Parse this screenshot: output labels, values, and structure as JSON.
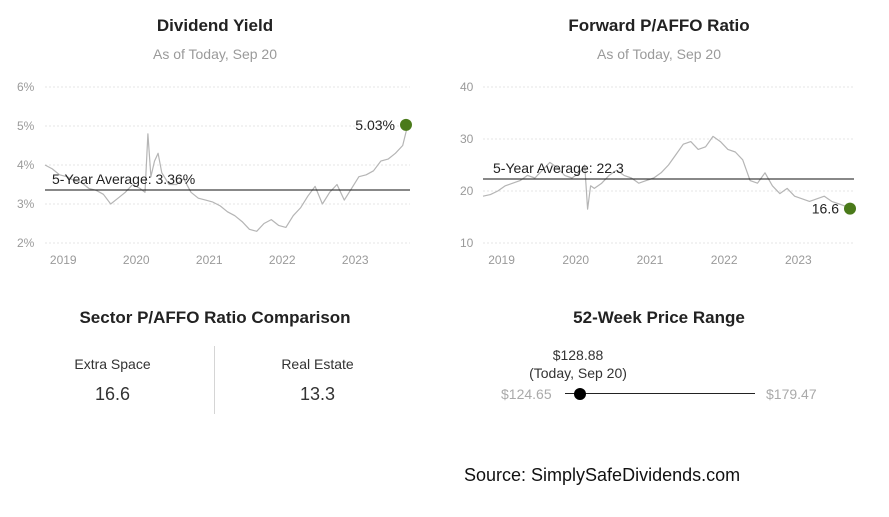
{
  "dividend": {
    "title": "Dividend Yield",
    "subtitle": "As of Today, Sep 20",
    "avg_label": "5-Year Average: 3.36%",
    "current_label": "5.03%"
  },
  "pafo": {
    "title": "Forward P/AFFO Ratio",
    "subtitle": "As of Today, Sep 20",
    "avg_label": "5-Year Average: 22.3",
    "current_label": "16.6"
  },
  "sector": {
    "title": "Sector P/AFFO Ratio Comparison",
    "items": [
      {
        "label": "Extra Space",
        "value": "16.6"
      },
      {
        "label": "Real Estate",
        "value": "13.3"
      }
    ]
  },
  "range52": {
    "title": "52-Week Price Range",
    "low": "$124.65",
    "high": "$179.47",
    "current": "$128.88",
    "current_note": "(Today, Sep 20)",
    "low_value": 124.65,
    "high_value": 179.47,
    "current_value": 128.88
  },
  "source": "Source: SimplySafeDividends.com",
  "colors": {
    "accent": "#4a7a1a",
    "line": "#b5b5b5",
    "avg": "#111111"
  },
  "chart_data": [
    {
      "type": "line",
      "title": "Dividend Yield",
      "subtitle": "As of Today, Sep 20",
      "ylim": [
        2,
        6
      ],
      "xlim": [
        2018.75,
        2023.75
      ],
      "y_ticks": [
        "2%",
        "3%",
        "4%",
        "5%",
        "6%"
      ],
      "y_tick_values": [
        2,
        3,
        4,
        5,
        6
      ],
      "x_ticks": [
        "2019",
        "2020",
        "2021",
        "2022",
        "2023"
      ],
      "x_tick_values": [
        2019,
        2020,
        2021,
        2022,
        2023
      ],
      "average": 3.36,
      "current": 5.03,
      "grid": true,
      "series": [
        {
          "x": [
            2018.75,
            2018.85,
            2018.95,
            2019.05,
            2019.15,
            2019.25,
            2019.35,
            2019.45,
            2019.55,
            2019.65,
            2019.75,
            2019.85,
            2019.95,
            2020.05,
            2020.12,
            2020.16,
            2020.2,
            2020.25,
            2020.3,
            2020.35,
            2020.45,
            2020.55,
            2020.65,
            2020.75,
            2020.85,
            2020.95,
            2021.05,
            2021.15,
            2021.25,
            2021.35,
            2021.45,
            2021.55,
            2021.65,
            2021.75,
            2021.85,
            2021.95,
            2022.05,
            2022.15,
            2022.25,
            2022.35,
            2022.45,
            2022.55,
            2022.65,
            2022.75,
            2022.85,
            2022.95,
            2023.05,
            2023.15,
            2023.25,
            2023.35,
            2023.45,
            2023.55,
            2023.65,
            2023.72
          ],
          "y": [
            4.0,
            3.9,
            3.75,
            3.7,
            3.6,
            3.55,
            3.4,
            3.35,
            3.25,
            3.0,
            3.15,
            3.3,
            3.5,
            3.4,
            3.3,
            4.8,
            3.7,
            4.1,
            4.3,
            3.8,
            3.5,
            3.5,
            3.65,
            3.3,
            3.15,
            3.1,
            3.05,
            2.95,
            2.8,
            2.7,
            2.55,
            2.35,
            2.3,
            2.5,
            2.6,
            2.45,
            2.4,
            2.7,
            2.9,
            3.2,
            3.45,
            3.0,
            3.3,
            3.5,
            3.1,
            3.4,
            3.7,
            3.75,
            3.85,
            4.1,
            4.15,
            4.3,
            4.5,
            5.03
          ]
        }
      ]
    },
    {
      "type": "line",
      "title": "Forward P/AFFO Ratio",
      "subtitle": "As of Today, Sep 20",
      "ylim": [
        10,
        40
      ],
      "xlim": [
        2018.75,
        2023.75
      ],
      "y_ticks": [
        "10",
        "20",
        "30",
        "40"
      ],
      "y_tick_values": [
        10,
        20,
        30,
        40
      ],
      "x_ticks": [
        "2019",
        "2020",
        "2021",
        "2022",
        "2023"
      ],
      "x_tick_values": [
        2019,
        2020,
        2021,
        2022,
        2023
      ],
      "average": 22.3,
      "current": 16.6,
      "grid": true,
      "series": [
        {
          "x": [
            2018.75,
            2018.85,
            2018.95,
            2019.05,
            2019.15,
            2019.25,
            2019.35,
            2019.45,
            2019.55,
            2019.65,
            2019.75,
            2019.85,
            2019.95,
            2020.05,
            2020.12,
            2020.16,
            2020.2,
            2020.25,
            2020.35,
            2020.45,
            2020.55,
            2020.65,
            2020.75,
            2020.85,
            2020.95,
            2021.05,
            2021.15,
            2021.25,
            2021.35,
            2021.45,
            2021.55,
            2021.65,
            2021.75,
            2021.85,
            2021.95,
            2022.05,
            2022.15,
            2022.25,
            2022.35,
            2022.45,
            2022.55,
            2022.65,
            2022.75,
            2022.85,
            2022.95,
            2023.05,
            2023.15,
            2023.25,
            2023.35,
            2023.45,
            2023.55,
            2023.65,
            2023.72
          ],
          "y": [
            19.0,
            19.3,
            20.0,
            21.0,
            21.5,
            22.0,
            23.0,
            22.5,
            24.0,
            25.5,
            24.5,
            23.0,
            22.5,
            23.5,
            25.0,
            16.5,
            21.0,
            20.5,
            21.5,
            23.0,
            24.0,
            23.0,
            22.5,
            21.5,
            22.0,
            22.5,
            23.5,
            25.0,
            27.0,
            29.0,
            29.5,
            28.0,
            28.5,
            30.5,
            29.5,
            28.0,
            27.5,
            26.0,
            22.0,
            21.5,
            23.5,
            21.0,
            19.5,
            20.5,
            19.0,
            18.5,
            18.0,
            18.5,
            19.0,
            18.0,
            17.5,
            17.0,
            16.6
          ]
        }
      ]
    }
  ]
}
